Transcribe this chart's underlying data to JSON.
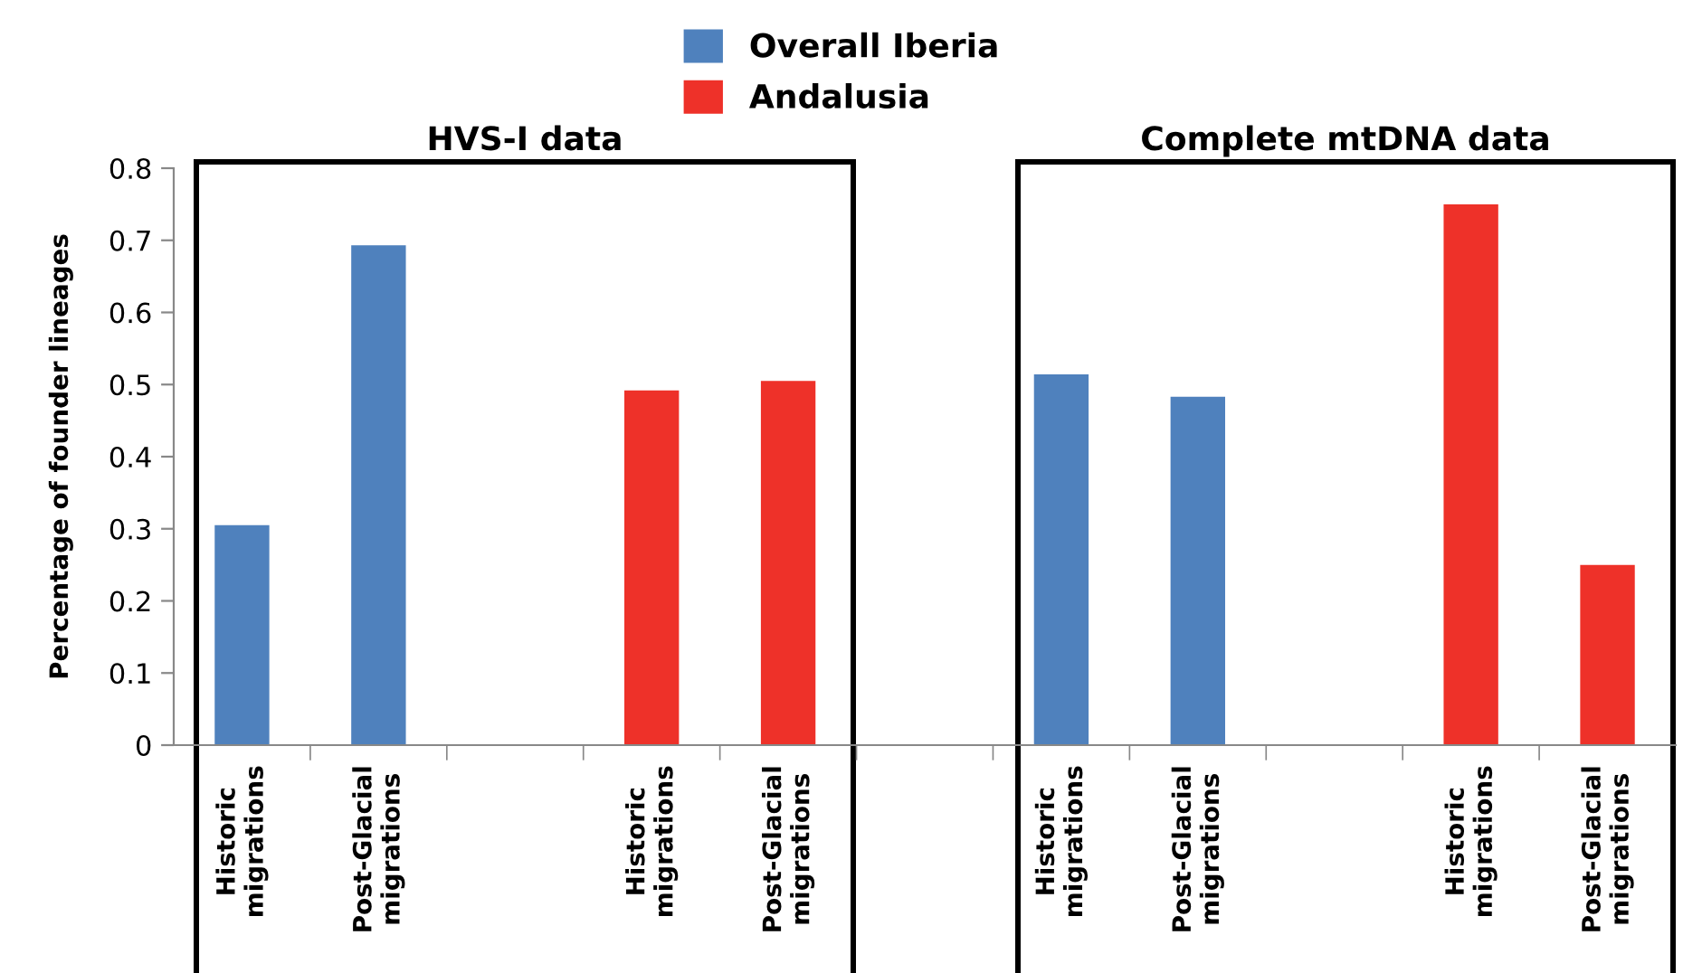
{
  "chart_data": {
    "type": "bar",
    "ylabel": "Percentage of founder lineages",
    "categories": [
      "Historic\nmigrations",
      "Post-Glacial\nmigrations",
      null,
      "Historic\nmigrations",
      "Post-Glacial\nmigrations",
      null,
      "Historic\nmigrations",
      "Post-Glacial\nmigrations",
      null,
      "Historic\nmigrations",
      "Post-Glacial\nmigrations"
    ],
    "series": [
      {
        "name": "Overall Iberia",
        "color": "#4f81bd",
        "values": [
          0.305,
          0.693,
          null,
          null,
          null,
          null,
          0.514,
          0.483,
          null,
          null,
          null
        ]
      },
      {
        "name": "Andalusia",
        "color": "#ee3129",
        "values": [
          null,
          null,
          null,
          0.492,
          0.505,
          null,
          null,
          null,
          null,
          0.75,
          0.25
        ]
      }
    ],
    "annotations": [
      "HVS-I data",
      "Complete mtDNA data"
    ],
    "ylim": [
      0,
      0.8
    ],
    "yticks": [
      0,
      0.1,
      0.2,
      0.3,
      0.4,
      0.5,
      0.6,
      0.7,
      0.8
    ],
    "grid": false,
    "legend": "top"
  }
}
